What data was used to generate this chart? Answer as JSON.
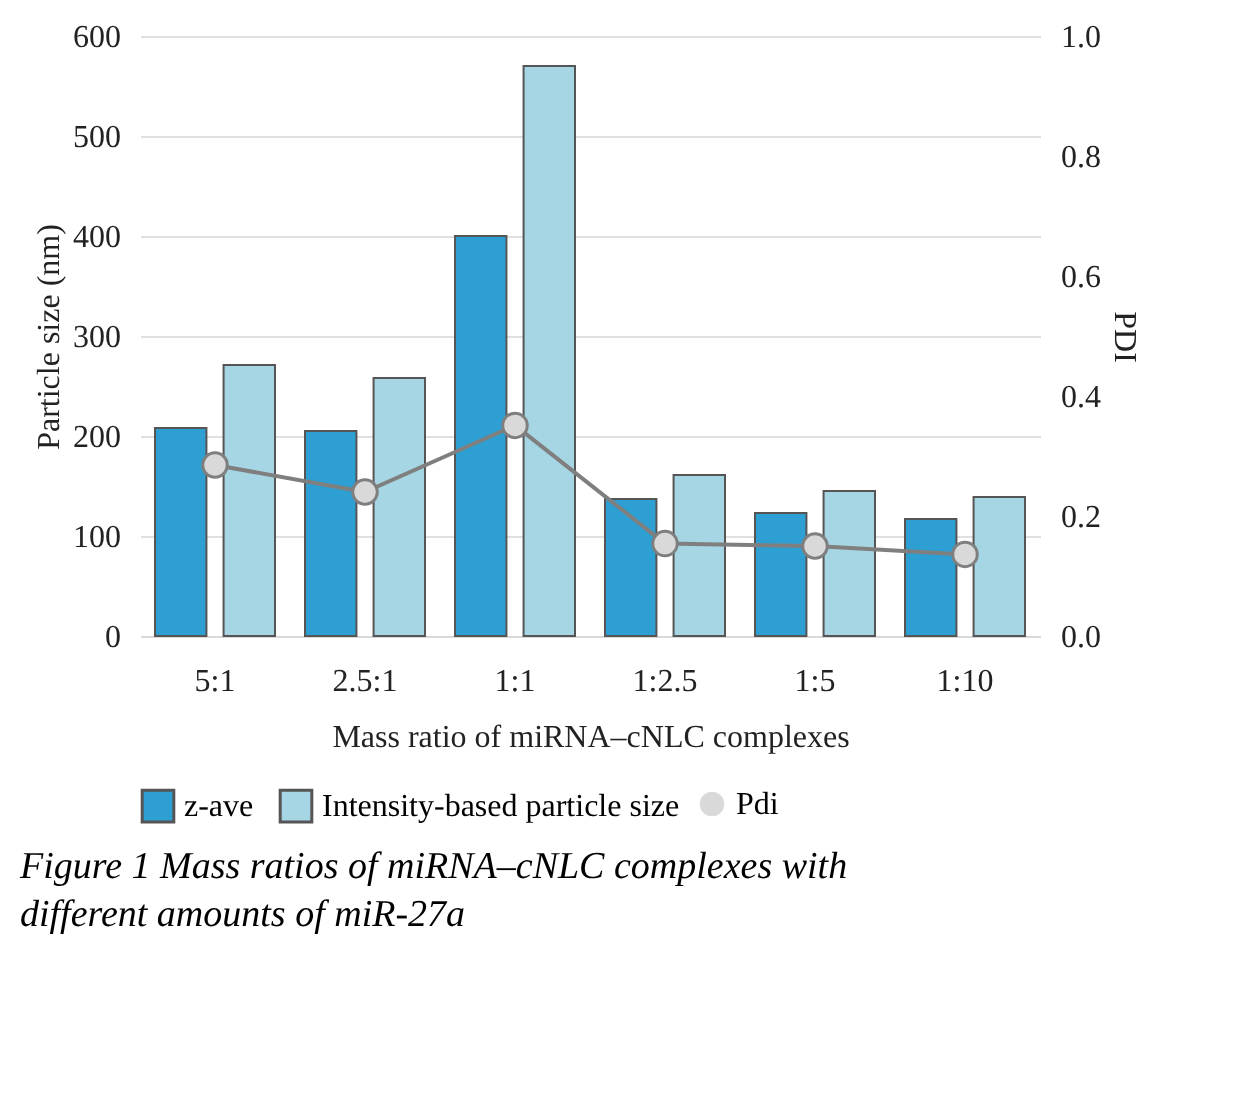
{
  "chart_data": {
    "type": "bar",
    "categories": [
      "5:1",
      "2.5:1",
      "1:1",
      "1:2.5",
      "1:5",
      "1:10"
    ],
    "series": [
      {
        "name": "z-ave",
        "color": "#2e9fd2",
        "values": [
          208,
          205,
          400,
          137,
          123,
          117
        ]
      },
      {
        "name": "Intensity-based particle size",
        "color": "#a6d6e4",
        "values": [
          271,
          258,
          570,
          161,
          145,
          139
        ]
      },
      {
        "name": "Pdi",
        "type": "line",
        "axis": "y2",
        "color": "#7f7f7f",
        "marker": "circle",
        "values": [
          0.285,
          0.24,
          0.351,
          0.154,
          0.15,
          0.136
        ]
      }
    ],
    "xlabel": "Mass ratio of miRNA–cNLC complexes",
    "ylabel": "Particle size (nm)",
    "y2label": "PDI",
    "ylim": [
      0,
      600
    ],
    "yticks": [
      0,
      100,
      200,
      300,
      400,
      500,
      600
    ],
    "y2lim": [
      0,
      1
    ],
    "y2ticks": [
      {
        "value": 0,
        "label": "0.0"
      },
      {
        "value": 0.2,
        "label": "0.2"
      },
      {
        "value": 0.4,
        "label": "0.4"
      },
      {
        "value": 0.6,
        "label": "0.6"
      },
      {
        "value": 0.8,
        "label": "0.8"
      },
      {
        "value": 1,
        "label": "1.0"
      }
    ],
    "grid": "y",
    "legend": "bottom",
    "annotations": [
      "Figure 1 Mass ratios of miRNA–cNLC complexes with different amounts of miR-27a"
    ]
  }
}
